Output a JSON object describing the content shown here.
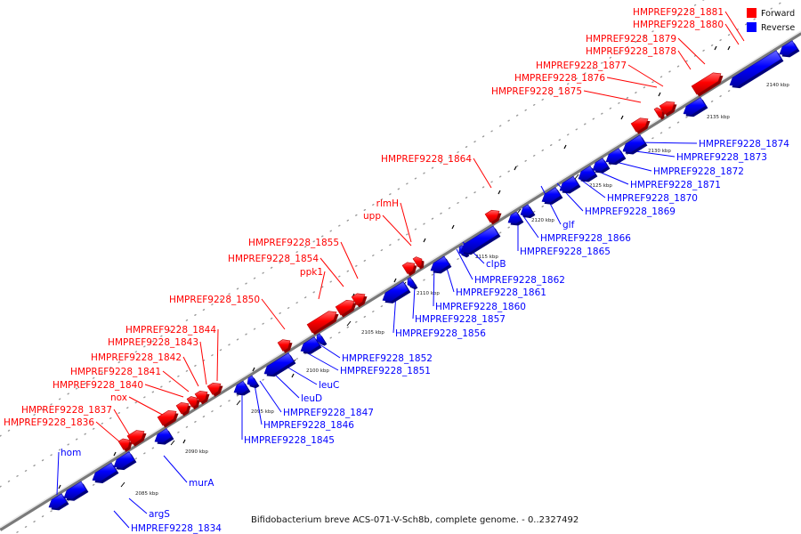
{
  "legend": {
    "forward_label": "Forward",
    "reverse_label": "Reverse",
    "forward_color": "#ff0000",
    "reverse_color": "#0000ff"
  },
  "caption": "Bifidobacterium breve ACS-071-V-Sch8b, complete genome. - 0..2327492",
  "ticks": [
    "2085 kbp",
    "2090 kbp",
    "2095 kbp",
    "2100 kbp",
    "2105 kbp",
    "2110 kbp",
    "2115 kbp",
    "2120 kbp",
    "2125 kbp",
    "2130 kbp",
    "2135 kbp",
    "2140 kbp"
  ],
  "forward_genes": [
    "HMPREF9228_1881",
    "HMPREF9228_1880",
    "HMPREF9228_1879",
    "HMPREF9228_1878",
    "HMPREF9228_1877",
    "HMPREF9228_1876",
    "HMPREF9228_1875",
    "HMPREF9228_1864",
    "rlmH",
    "upp",
    "HMPREF9228_1855",
    "HMPREF9228_1854",
    "ppk1",
    "HMPREF9228_1850",
    "HMPREF9228_1844",
    "HMPREF9228_1843",
    "HMPREF9228_1842",
    "HMPREF9228_1841",
    "HMPREF9228_1840",
    "nox",
    "HMPREF9228_1837",
    "HMPREF9228_1836"
  ],
  "reverse_genes": [
    "hom",
    "murA",
    "argS",
    "HMPREF9228_1834",
    "HMPREF9228_1874",
    "HMPREF9228_1873",
    "HMPREF9228_1872",
    "HMPREF9228_1871",
    "HMPREF9228_1870",
    "HMPREF9228_1869",
    "glf",
    "HMPREF9228_1866",
    "HMPREF9228_1865",
    "clpB",
    "HMPREF9228_1862",
    "HMPREF9228_1861",
    "HMPREF9228_1860",
    "HMPREF9228_1857",
    "HMPREF9228_1856",
    "HMPREF9228_1852",
    "HMPREF9228_1851",
    "leuC",
    "leuD",
    "HMPREF9228_1847",
    "HMPREF9228_1846",
    "HMPREF9228_1845"
  ]
}
